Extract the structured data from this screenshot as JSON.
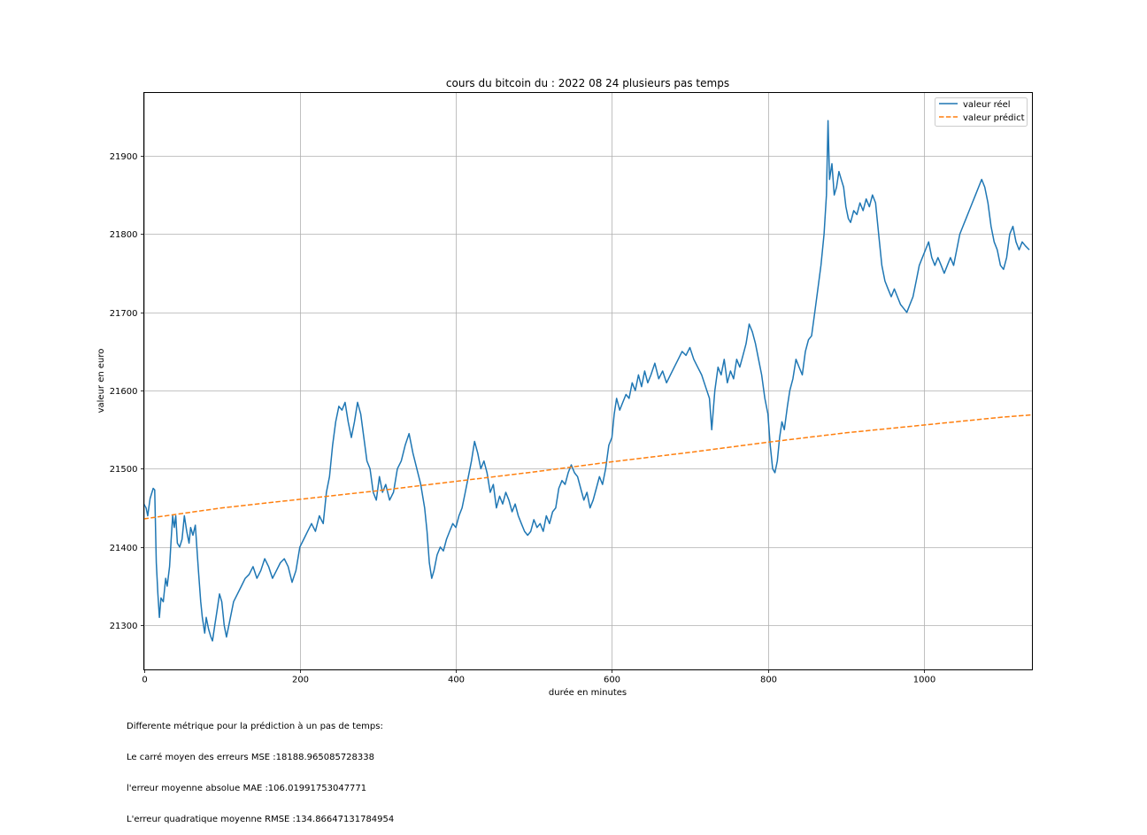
{
  "chart_data": {
    "type": "line",
    "title": "cours du bitcoin du : 2022 08 24 plusieurs pas temps",
    "xlabel": "durée en minutes",
    "ylabel": "valeur en euro",
    "xlim": [
      0,
      1139
    ],
    "ylim": [
      21243,
      21981
    ],
    "xticks": [
      0,
      200,
      400,
      600,
      800,
      1000
    ],
    "yticks": [
      21300,
      21400,
      21500,
      21600,
      21700,
      21800,
      21900
    ],
    "grid": true,
    "legend_position": "top-right",
    "series": [
      {
        "name": "valeur réel",
        "color": "#1f77b4",
        "style": "solid",
        "points": [
          [
            0,
            21455
          ],
          [
            3,
            21450
          ],
          [
            5,
            21440
          ],
          [
            8,
            21462
          ],
          [
            12,
            21475
          ],
          [
            14,
            21473
          ],
          [
            16,
            21380
          ],
          [
            18,
            21340
          ],
          [
            20,
            21310
          ],
          [
            22,
            21335
          ],
          [
            25,
            21330
          ],
          [
            28,
            21360
          ],
          [
            30,
            21350
          ],
          [
            33,
            21375
          ],
          [
            35,
            21410
          ],
          [
            37,
            21440
          ],
          [
            39,
            21425
          ],
          [
            41,
            21440
          ],
          [
            43,
            21405
          ],
          [
            46,
            21400
          ],
          [
            49,
            21410
          ],
          [
            52,
            21440
          ],
          [
            55,
            21420
          ],
          [
            58,
            21405
          ],
          [
            60,
            21425
          ],
          [
            63,
            21415
          ],
          [
            66,
            21428
          ],
          [
            68,
            21400
          ],
          [
            70,
            21370
          ],
          [
            73,
            21330
          ],
          [
            75,
            21310
          ],
          [
            78,
            21290
          ],
          [
            80,
            21310
          ],
          [
            83,
            21295
          ],
          [
            86,
            21285
          ],
          [
            88,
            21280
          ],
          [
            91,
            21300
          ],
          [
            94,
            21320
          ],
          [
            97,
            21340
          ],
          [
            100,
            21330
          ],
          [
            103,
            21300
          ],
          [
            106,
            21285
          ],
          [
            110,
            21305
          ],
          [
            115,
            21330
          ],
          [
            120,
            21340
          ],
          [
            125,
            21350
          ],
          [
            130,
            21360
          ],
          [
            135,
            21365
          ],
          [
            140,
            21375
          ],
          [
            145,
            21360
          ],
          [
            150,
            21370
          ],
          [
            155,
            21385
          ],
          [
            160,
            21375
          ],
          [
            165,
            21360
          ],
          [
            170,
            21370
          ],
          [
            175,
            21380
          ],
          [
            180,
            21385
          ],
          [
            185,
            21375
          ],
          [
            190,
            21355
          ],
          [
            195,
            21370
          ],
          [
            200,
            21400
          ],
          [
            205,
            21410
          ],
          [
            210,
            21420
          ],
          [
            215,
            21430
          ],
          [
            220,
            21420
          ],
          [
            225,
            21440
          ],
          [
            230,
            21430
          ],
          [
            234,
            21470
          ],
          [
            238,
            21490
          ],
          [
            242,
            21530
          ],
          [
            246,
            21560
          ],
          [
            250,
            21580
          ],
          [
            254,
            21575
          ],
          [
            258,
            21585
          ],
          [
            262,
            21560
          ],
          [
            266,
            21540
          ],
          [
            270,
            21560
          ],
          [
            274,
            21585
          ],
          [
            278,
            21570
          ],
          [
            282,
            21540
          ],
          [
            286,
            21510
          ],
          [
            290,
            21500
          ],
          [
            294,
            21470
          ],
          [
            298,
            21460
          ],
          [
            302,
            21490
          ],
          [
            306,
            21470
          ],
          [
            310,
            21480
          ],
          [
            315,
            21460
          ],
          [
            320,
            21470
          ],
          [
            325,
            21500
          ],
          [
            330,
            21510
          ],
          [
            335,
            21530
          ],
          [
            340,
            21545
          ],
          [
            345,
            21520
          ],
          [
            350,
            21500
          ],
          [
            355,
            21480
          ],
          [
            360,
            21450
          ],
          [
            363,
            21420
          ],
          [
            366,
            21380
          ],
          [
            369,
            21360
          ],
          [
            372,
            21370
          ],
          [
            376,
            21390
          ],
          [
            380,
            21400
          ],
          [
            384,
            21395
          ],
          [
            388,
            21410
          ],
          [
            392,
            21420
          ],
          [
            396,
            21430
          ],
          [
            400,
            21425
          ],
          [
            404,
            21440
          ],
          [
            408,
            21450
          ],
          [
            412,
            21470
          ],
          [
            416,
            21490
          ],
          [
            420,
            21510
          ],
          [
            424,
            21535
          ],
          [
            428,
            21520
          ],
          [
            432,
            21500
          ],
          [
            436,
            21510
          ],
          [
            440,
            21495
          ],
          [
            444,
            21470
          ],
          [
            448,
            21480
          ],
          [
            452,
            21450
          ],
          [
            456,
            21465
          ],
          [
            460,
            21455
          ],
          [
            464,
            21470
          ],
          [
            468,
            21460
          ],
          [
            472,
            21445
          ],
          [
            476,
            21455
          ],
          [
            480,
            21440
          ],
          [
            484,
            21430
          ],
          [
            488,
            21420
          ],
          [
            492,
            21415
          ],
          [
            496,
            21420
          ],
          [
            500,
            21435
          ],
          [
            504,
            21425
          ],
          [
            508,
            21430
          ],
          [
            512,
            21420
          ],
          [
            516,
            21440
          ],
          [
            520,
            21430
          ],
          [
            524,
            21445
          ],
          [
            528,
            21450
          ],
          [
            532,
            21475
          ],
          [
            536,
            21485
          ],
          [
            540,
            21480
          ],
          [
            544,
            21495
          ],
          [
            548,
            21505
          ],
          [
            552,
            21495
          ],
          [
            556,
            21490
          ],
          [
            560,
            21475
          ],
          [
            564,
            21460
          ],
          [
            568,
            21470
          ],
          [
            572,
            21450
          ],
          [
            576,
            21460
          ],
          [
            580,
            21475
          ],
          [
            584,
            21490
          ],
          [
            588,
            21480
          ],
          [
            592,
            21500
          ],
          [
            596,
            21530
          ],
          [
            600,
            21540
          ],
          [
            603,
            21570
          ],
          [
            606,
            21590
          ],
          [
            610,
            21575
          ],
          [
            614,
            21585
          ],
          [
            618,
            21595
          ],
          [
            622,
            21590
          ],
          [
            626,
            21610
          ],
          [
            630,
            21600
          ],
          [
            634,
            21620
          ],
          [
            638,
            21605
          ],
          [
            642,
            21625
          ],
          [
            646,
            21610
          ],
          [
            650,
            21620
          ],
          [
            655,
            21635
          ],
          [
            660,
            21615
          ],
          [
            665,
            21625
          ],
          [
            670,
            21610
          ],
          [
            675,
            21620
          ],
          [
            680,
            21630
          ],
          [
            685,
            21640
          ],
          [
            690,
            21650
          ],
          [
            695,
            21645
          ],
          [
            700,
            21655
          ],
          [
            705,
            21640
          ],
          [
            710,
            21630
          ],
          [
            715,
            21620
          ],
          [
            720,
            21605
          ],
          [
            725,
            21590
          ],
          [
            728,
            21550
          ],
          [
            732,
            21600
          ],
          [
            736,
            21630
          ],
          [
            740,
            21620
          ],
          [
            744,
            21640
          ],
          [
            748,
            21610
          ],
          [
            752,
            21625
          ],
          [
            756,
            21615
          ],
          [
            760,
            21640
          ],
          [
            764,
            21630
          ],
          [
            768,
            21645
          ],
          [
            772,
            21660
          ],
          [
            776,
            21685
          ],
          [
            780,
            21675
          ],
          [
            784,
            21660
          ],
          [
            788,
            21640
          ],
          [
            792,
            21620
          ],
          [
            796,
            21590
          ],
          [
            800,
            21570
          ],
          [
            803,
            21530
          ],
          [
            806,
            21500
          ],
          [
            809,
            21495
          ],
          [
            812,
            21510
          ],
          [
            815,
            21540
          ],
          [
            818,
            21560
          ],
          [
            821,
            21550
          ],
          [
            825,
            21580
          ],
          [
            828,
            21600
          ],
          [
            832,
            21615
          ],
          [
            836,
            21640
          ],
          [
            840,
            21630
          ],
          [
            844,
            21620
          ],
          [
            848,
            21650
          ],
          [
            852,
            21665
          ],
          [
            856,
            21670
          ],
          [
            860,
            21700
          ],
          [
            864,
            21730
          ],
          [
            868,
            21760
          ],
          [
            872,
            21800
          ],
          [
            875,
            21850
          ],
          [
            877,
            21945
          ],
          [
            879,
            21870
          ],
          [
            882,
            21890
          ],
          [
            885,
            21850
          ],
          [
            888,
            21860
          ],
          [
            891,
            21880
          ],
          [
            894,
            21870
          ],
          [
            897,
            21860
          ],
          [
            900,
            21835
          ],
          [
            903,
            21820
          ],
          [
            906,
            21815
          ],
          [
            910,
            21830
          ],
          [
            914,
            21825
          ],
          [
            918,
            21840
          ],
          [
            922,
            21830
          ],
          [
            926,
            21845
          ],
          [
            930,
            21835
          ],
          [
            934,
            21850
          ],
          [
            938,
            21840
          ],
          [
            942,
            21800
          ],
          [
            946,
            21760
          ],
          [
            950,
            21740
          ],
          [
            954,
            21730
          ],
          [
            958,
            21720
          ],
          [
            962,
            21730
          ],
          [
            966,
            21720
          ],
          [
            970,
            21710
          ],
          [
            974,
            21705
          ],
          [
            978,
            21700
          ],
          [
            982,
            21710
          ],
          [
            986,
            21720
          ],
          [
            990,
            21740
          ],
          [
            994,
            21760
          ],
          [
            998,
            21770
          ],
          [
            1002,
            21780
          ],
          [
            1006,
            21790
          ],
          [
            1010,
            21770
          ],
          [
            1014,
            21760
          ],
          [
            1018,
            21770
          ],
          [
            1022,
            21760
          ],
          [
            1026,
            21750
          ],
          [
            1030,
            21760
          ],
          [
            1034,
            21770
          ],
          [
            1038,
            21760
          ],
          [
            1042,
            21780
          ],
          [
            1046,
            21800
          ],
          [
            1050,
            21810
          ],
          [
            1054,
            21820
          ],
          [
            1058,
            21830
          ],
          [
            1062,
            21840
          ],
          [
            1066,
            21850
          ],
          [
            1070,
            21860
          ],
          [
            1074,
            21870
          ],
          [
            1078,
            21860
          ],
          [
            1082,
            21840
          ],
          [
            1086,
            21810
          ],
          [
            1090,
            21790
          ],
          [
            1094,
            21780
          ],
          [
            1098,
            21760
          ],
          [
            1102,
            21755
          ],
          [
            1106,
            21770
          ],
          [
            1110,
            21800
          ],
          [
            1114,
            21810
          ],
          [
            1118,
            21790
          ],
          [
            1122,
            21780
          ],
          [
            1126,
            21790
          ],
          [
            1130,
            21785
          ],
          [
            1135,
            21780
          ]
        ]
      },
      {
        "name": "valeur prédict",
        "color": "#ff7f0e",
        "style": "dashed",
        "points": [
          [
            0,
            21436
          ],
          [
            100,
            21450
          ],
          [
            200,
            21461
          ],
          [
            300,
            21472
          ],
          [
            400,
            21484
          ],
          [
            500,
            21496
          ],
          [
            600,
            21509
          ],
          [
            700,
            21521
          ],
          [
            800,
            21534
          ],
          [
            900,
            21546
          ],
          [
            1000,
            21556
          ],
          [
            1100,
            21566
          ],
          [
            1139,
            21569
          ]
        ]
      }
    ]
  },
  "metrics": {
    "title": "Differente métrique pour la prédiction à un pas de temps:",
    "mse": "Le carré moyen des erreurs MSE :18188.965085728338",
    "mae": "l'erreur moyenne absolue MAE :106.01991753047771",
    "rmse": "L'erreur quadratique moyenne RMSE :134.86647131784954"
  }
}
